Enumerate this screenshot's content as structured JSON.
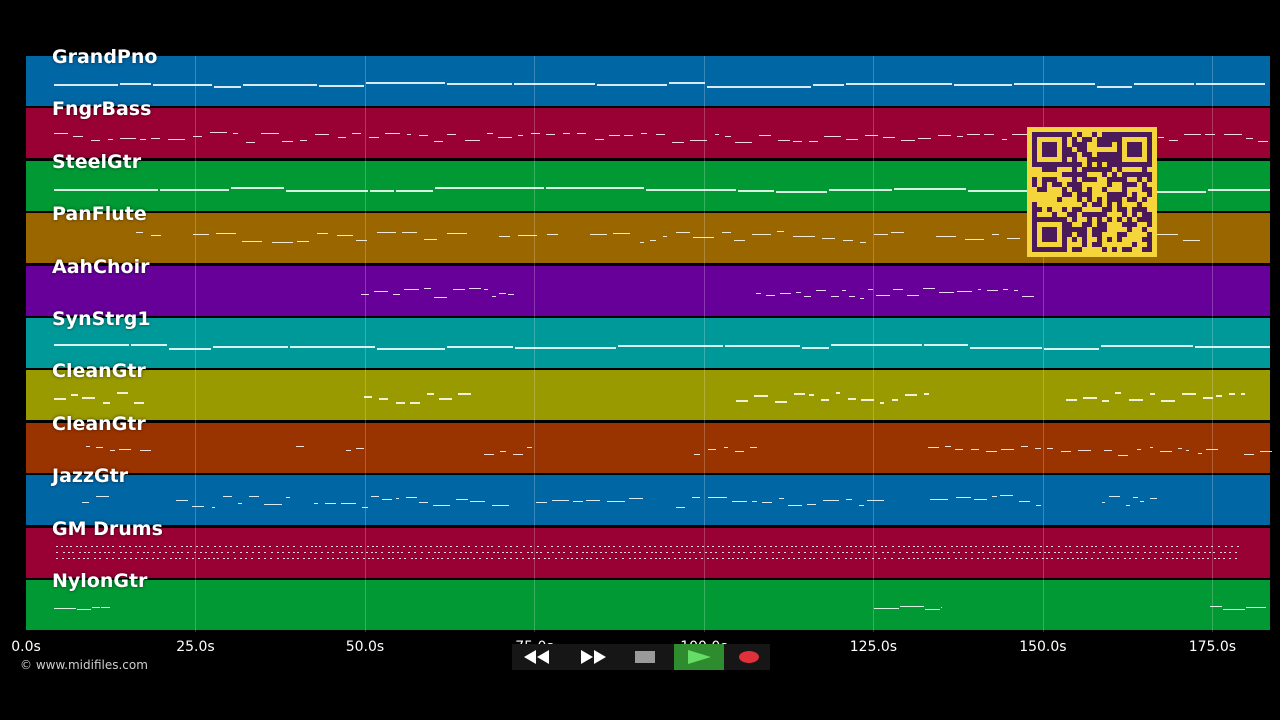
{
  "tracks": [
    {
      "name": "GrandPno",
      "color": "#0066a4",
      "pattern": "dense-long"
    },
    {
      "name": "FngrBass",
      "color": "#990033",
      "pattern": "dense-short"
    },
    {
      "name": "SteelGtr",
      "color": "#009933",
      "pattern": "dense-long"
    },
    {
      "name": "PanFlute",
      "color": "#996600",
      "pattern": "sparse-phrases"
    },
    {
      "name": "AahChoir",
      "color": "#660099",
      "pattern": "two-clusters"
    },
    {
      "name": "SynStrg1",
      "color": "#009999",
      "pattern": "dense-long"
    },
    {
      "name": "CleanGtr",
      "color": "#999900",
      "pattern": "chunks"
    },
    {
      "name": "CleanGtr",
      "color": "#993300",
      "pattern": "scattered"
    },
    {
      "name": "JazzGtr",
      "color": "#0066a4",
      "pattern": "phrases"
    },
    {
      "name": "GM Drums",
      "color": "#990033",
      "pattern": "drums"
    },
    {
      "name": "NylonGtr",
      "color": "#009933",
      "pattern": "few"
    }
  ],
  "timeline": {
    "ticks": [
      "0.0s",
      "25.0s",
      "50.0s",
      "75.0s",
      "100.0s",
      "125.0s",
      "150.0s",
      "175.0s"
    ],
    "tick_seconds": [
      0,
      25,
      50,
      75,
      100,
      125,
      150,
      175
    ],
    "duration_seconds": 183.5
  },
  "copyright": "© www.midifiles.com",
  "transport": {
    "buttons": [
      {
        "name": "rewind-button",
        "icon": "rewind-icon"
      },
      {
        "name": "fast-forward-button",
        "icon": "fast-forward-icon"
      },
      {
        "name": "stop-button",
        "icon": "stop-icon"
      },
      {
        "name": "play-button",
        "icon": "play-icon",
        "active_color": "#2e8b2e"
      },
      {
        "name": "record-button",
        "icon": "record-icon",
        "color": "#e0303a"
      }
    ]
  },
  "qr": {
    "icon": "qr-code-icon",
    "fg": "#4a1a5a",
    "bg": "#f4d63a"
  }
}
